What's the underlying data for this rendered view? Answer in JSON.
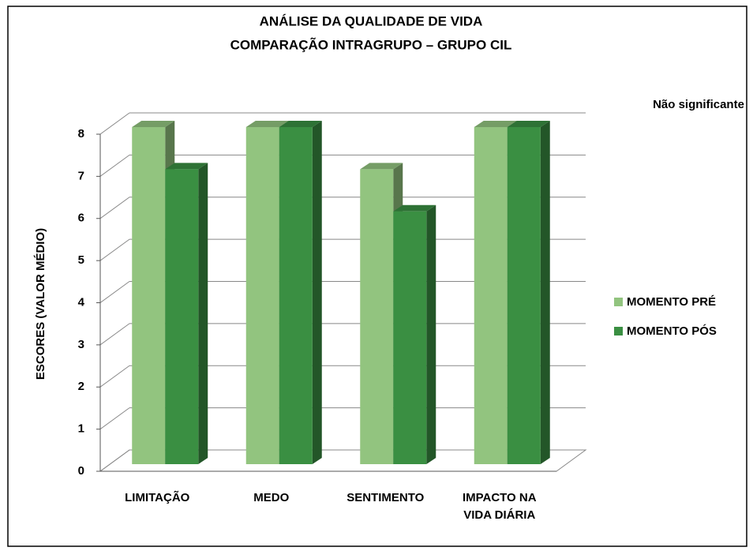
{
  "chart_data": {
    "type": "bar3d",
    "title": "ANÁLISE DA QUALIDADE DE VIDA",
    "subtitle": "COMPARAÇÃO  INTRAGRUPO – GRUPO CIL",
    "annotation": "Não significante",
    "y_label": "ESCORES (VALOR  MÉDIO)",
    "categories": [
      "LIMITAÇÃO",
      "MEDO",
      "SENTIMENTO",
      "IMPACTO NA VIDA DIÁRIA"
    ],
    "series": [
      {
        "name": "MOMENTO PRÉ",
        "color": "#92c47f",
        "values": [
          8,
          8,
          7,
          8
        ]
      },
      {
        "name": "MOMENTO PÓS",
        "color": "#3a8f42",
        "values": [
          7,
          8,
          6,
          8
        ]
      }
    ],
    "ylim": [
      0,
      8
    ],
    "yticks": [
      0,
      1,
      2,
      3,
      4,
      5,
      6,
      7,
      8
    ],
    "grid": true,
    "legend": "right"
  }
}
